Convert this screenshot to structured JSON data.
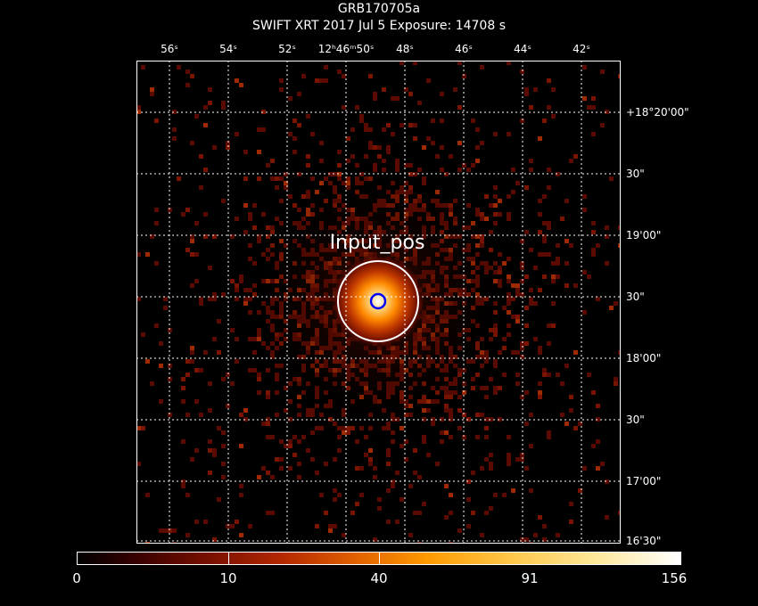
{
  "title": {
    "line1": "GRB170705a",
    "line2": "SWIFT XRT   2017 Jul  5     Exposure: 14708 s"
  },
  "ra_labels": [
    "56ˢ",
    "54ˢ",
    "52ˢ",
    "12ʰ46ᵐ50ˢ",
    "48ˢ",
    "46ˢ",
    "44ˢ",
    "42ˢ"
  ],
  "dec_labels": [
    "+18°20'00\"",
    "30\"",
    "19'00\"",
    "30\"",
    "18'00\"",
    "30\"",
    "17'00\"",
    "16'30\""
  ],
  "source_label": "Input_pos",
  "colorbar": {
    "labels": [
      "0",
      "10",
      "40",
      "91",
      "156"
    ]
  },
  "colors": {
    "background": "#000000",
    "grid": "#ffffff",
    "source_circle": "#ffffff",
    "position_circle": "#0000ff"
  }
}
